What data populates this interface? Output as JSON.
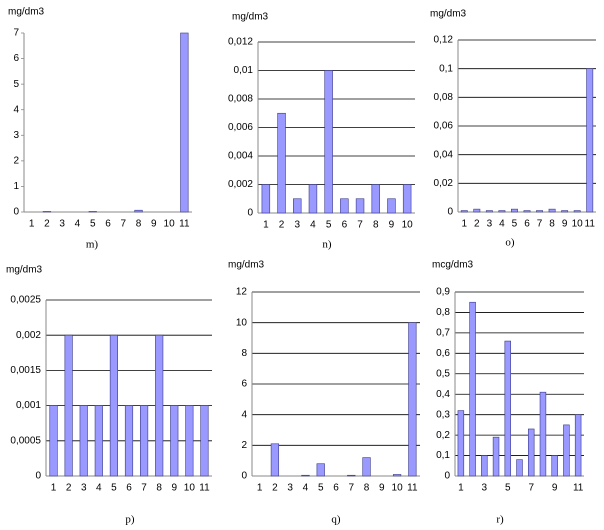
{
  "chart_data": [
    {
      "type": "bar",
      "y_label": "mg/dm3",
      "title": "m)",
      "color": "#9999ff",
      "grid": false,
      "categories": [
        "1",
        "2",
        "3",
        "4",
        "5",
        "6",
        "7",
        "8",
        "9",
        "10",
        "11"
      ],
      "values": [
        0,
        0.02,
        0,
        0,
        0.02,
        0,
        0,
        0.07,
        0,
        0,
        7
      ],
      "ylim": [
        0,
        7
      ],
      "yticks": [
        0,
        1,
        2,
        3,
        4,
        5,
        6,
        7
      ]
    },
    {
      "type": "bar",
      "y_label": "mg/dm3",
      "title": "n)",
      "color": "#9999ff",
      "grid": true,
      "categories": [
        "1",
        "2",
        "3",
        "4",
        "5",
        "6",
        "7",
        "8",
        "9",
        "10"
      ],
      "values": [
        0.002,
        0.007,
        0.001,
        0.002,
        0.01,
        0.001,
        0.001,
        0.002,
        0.001,
        0.002
      ],
      "ylim": [
        0,
        0.012
      ],
      "yticks": [
        0,
        {
          "value": 0.002,
          "label": "0,002"
        },
        {
          "value": 0.004,
          "label": "0,004"
        },
        {
          "value": 0.006,
          "label": "0,006"
        },
        {
          "value": 0.008,
          "label": "0,008"
        },
        {
          "value": 0.01,
          "label": "0,01"
        },
        {
          "value": 0.012,
          "label": "0,012"
        }
      ]
    },
    {
      "type": "bar",
      "y_label": "mg/dm3",
      "title": "o)",
      "color": "#9999ff",
      "grid": true,
      "categories": [
        "1",
        "2",
        "3",
        "4",
        "5",
        "6",
        "7",
        "8",
        "9",
        "10",
        "11"
      ],
      "values": [
        0.001,
        0.002,
        0.001,
        0.001,
        0.002,
        0.001,
        0.001,
        0.002,
        0.001,
        0.001,
        0.1
      ],
      "ylim": [
        0,
        0.12
      ],
      "yticks": [
        0,
        {
          "value": 0.02,
          "label": "0,02"
        },
        {
          "value": 0.04,
          "label": "0,04"
        },
        {
          "value": 0.06,
          "label": "0,06"
        },
        {
          "value": 0.08,
          "label": "0,08"
        },
        {
          "value": 0.1,
          "label": "0,1"
        },
        {
          "value": 0.12,
          "label": "0,12"
        }
      ]
    },
    {
      "type": "bar",
      "y_label": "mg/dm3",
      "title": "p)",
      "color": "#9999ff",
      "grid": true,
      "categories": [
        "1",
        "2",
        "3",
        "4",
        "5",
        "6",
        "7",
        "8",
        "9",
        "10",
        "11"
      ],
      "values": [
        0.001,
        0.002,
        0.001,
        0.001,
        0.002,
        0.001,
        0.001,
        0.002,
        0.001,
        0.001,
        0.001
      ],
      "ylim": [
        0,
        0.0025
      ],
      "yticks": [
        0,
        {
          "value": 0.0005,
          "label": "0,0005"
        },
        {
          "value": 0.001,
          "label": "0,001"
        },
        {
          "value": 0.0015,
          "label": "0,0015"
        },
        {
          "value": 0.002,
          "label": "0,002"
        },
        {
          "value": 0.0025,
          "label": "0,0025"
        }
      ]
    },
    {
      "type": "bar",
      "y_label": "mg/dm3",
      "title": "q)",
      "color": "#9999ff",
      "grid": true,
      "categories": [
        "1",
        "2",
        "3",
        "4",
        "5",
        "6",
        "7",
        "8",
        "9",
        "10",
        "11"
      ],
      "values": [
        0,
        2.1,
        0,
        0.05,
        0.8,
        0,
        0.05,
        1.2,
        0,
        0.1,
        10
      ],
      "ylim": [
        0,
        12
      ],
      "yticks": [
        0,
        2,
        4,
        6,
        8,
        10,
        12
      ]
    },
    {
      "type": "bar",
      "y_label": "mcg/dm3",
      "title": "r)",
      "color": "#9999ff",
      "grid": true,
      "categories": [
        "1",
        null,
        "3",
        null,
        "5",
        null,
        "7",
        null,
        "9",
        null,
        "11"
      ],
      "values": [
        0.32,
        0.85,
        0.1,
        0.19,
        0.66,
        0.08,
        0.23,
        0.41,
        0.1,
        0.25,
        0.3
      ],
      "ylim": [
        0,
        0.9
      ],
      "yticks": [
        0,
        {
          "value": 0.1,
          "label": "0,1"
        },
        {
          "value": 0.2,
          "label": "0,2"
        },
        {
          "value": 0.3,
          "label": "0,3"
        },
        {
          "value": 0.4,
          "label": "0,4"
        },
        {
          "value": 0.5,
          "label": "0,5"
        },
        {
          "value": 0.6,
          "label": "0,6"
        },
        {
          "value": 0.7,
          "label": "0,7"
        },
        {
          "value": 0.8,
          "label": "0,8"
        },
        {
          "value": 0.9,
          "label": "0,9"
        }
      ]
    }
  ]
}
